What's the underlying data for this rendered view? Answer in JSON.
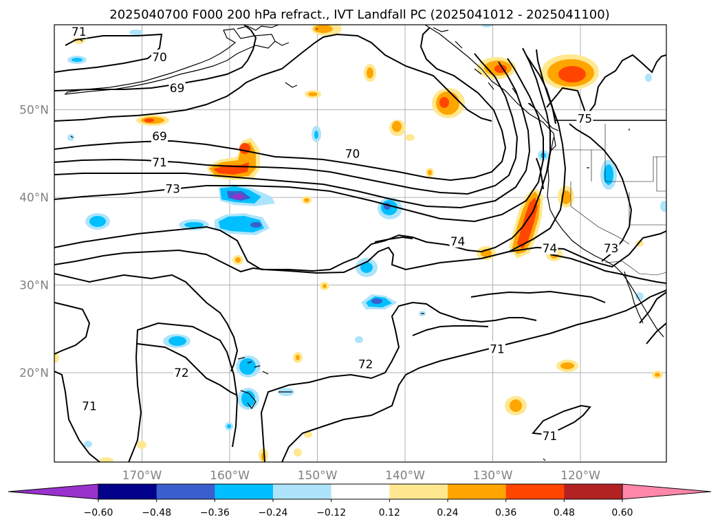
{
  "title": "2025040700 F000 200 hPa refract., IVT Landfall PC (2025041012 - 2025041100)",
  "map": {
    "lon_ticks": [
      {
        "lon": -170,
        "label": "170°W"
      },
      {
        "lon": -160,
        "label": "160°W"
      },
      {
        "lon": -150,
        "label": "150°W"
      },
      {
        "lon": -140,
        "label": "140°W"
      },
      {
        "lon": -130,
        "label": "130°W"
      },
      {
        "lon": -120,
        "label": "120°W"
      }
    ],
    "lat_ticks": [
      {
        "lat": 50,
        "label": "50°N"
      },
      {
        "lat": 40,
        "label": "40°N"
      },
      {
        "lat": 30,
        "label": "30°N"
      },
      {
        "lat": 20,
        "label": "20°N"
      }
    ],
    "contour_labels": [
      {
        "text": "71",
        "lon": -177.2,
        "lat": 58.9
      },
      {
        "text": "70",
        "lon": -168.0,
        "lat": 56.0
      },
      {
        "text": "69",
        "lon": -166.0,
        "lat": 52.5
      },
      {
        "text": "69",
        "lon": -168.0,
        "lat": 47.0
      },
      {
        "text": "71",
        "lon": -168.0,
        "lat": 44.0
      },
      {
        "text": "73",
        "lon": -166.5,
        "lat": 41.0
      },
      {
        "text": "70",
        "lon": -146.0,
        "lat": 45.0
      },
      {
        "text": "74",
        "lon": -134.0,
        "lat": 35.0
      },
      {
        "text": "74",
        "lon": -123.5,
        "lat": 34.2
      },
      {
        "text": "75",
        "lon": -119.5,
        "lat": 49.0
      },
      {
        "text": "73",
        "lon": -116.5,
        "lat": 34.2
      },
      {
        "text": "72",
        "lon": -165.5,
        "lat": 20.0
      },
      {
        "text": "72",
        "lon": -144.5,
        "lat": 21.0
      },
      {
        "text": "71",
        "lon": -129.5,
        "lat": 22.7
      },
      {
        "text": "71",
        "lon": -176.0,
        "lat": 16.2
      },
      {
        "text": "71",
        "lon": -123.5,
        "lat": 12.8
      }
    ]
  },
  "colorbar": {
    "colors": [
      "#9932cc",
      "#00008b",
      "#3a5fcd",
      "#00bfff",
      "#aee4fb",
      "#ffffff",
      "#ffe890",
      "#ffa500",
      "#ff4500",
      "#b22222",
      "#ff88aa"
    ],
    "tick_labels": [
      "−0.60",
      "−0.48",
      "−0.36",
      "−0.24",
      "−0.12",
      "0.12",
      "0.24",
      "0.36",
      "0.48",
      "0.60"
    ]
  },
  "shading": {
    "colors": {
      "pale_blue": "#aee4fb",
      "blue": "#00bfff",
      "mid_blue": "#3a5fcd",
      "purple": "#9932cc",
      "pale_yellow": "#ffe890",
      "orange": "#ffa500",
      "red_orange": "#ff4500",
      "dark_red": "#b22222"
    }
  }
}
